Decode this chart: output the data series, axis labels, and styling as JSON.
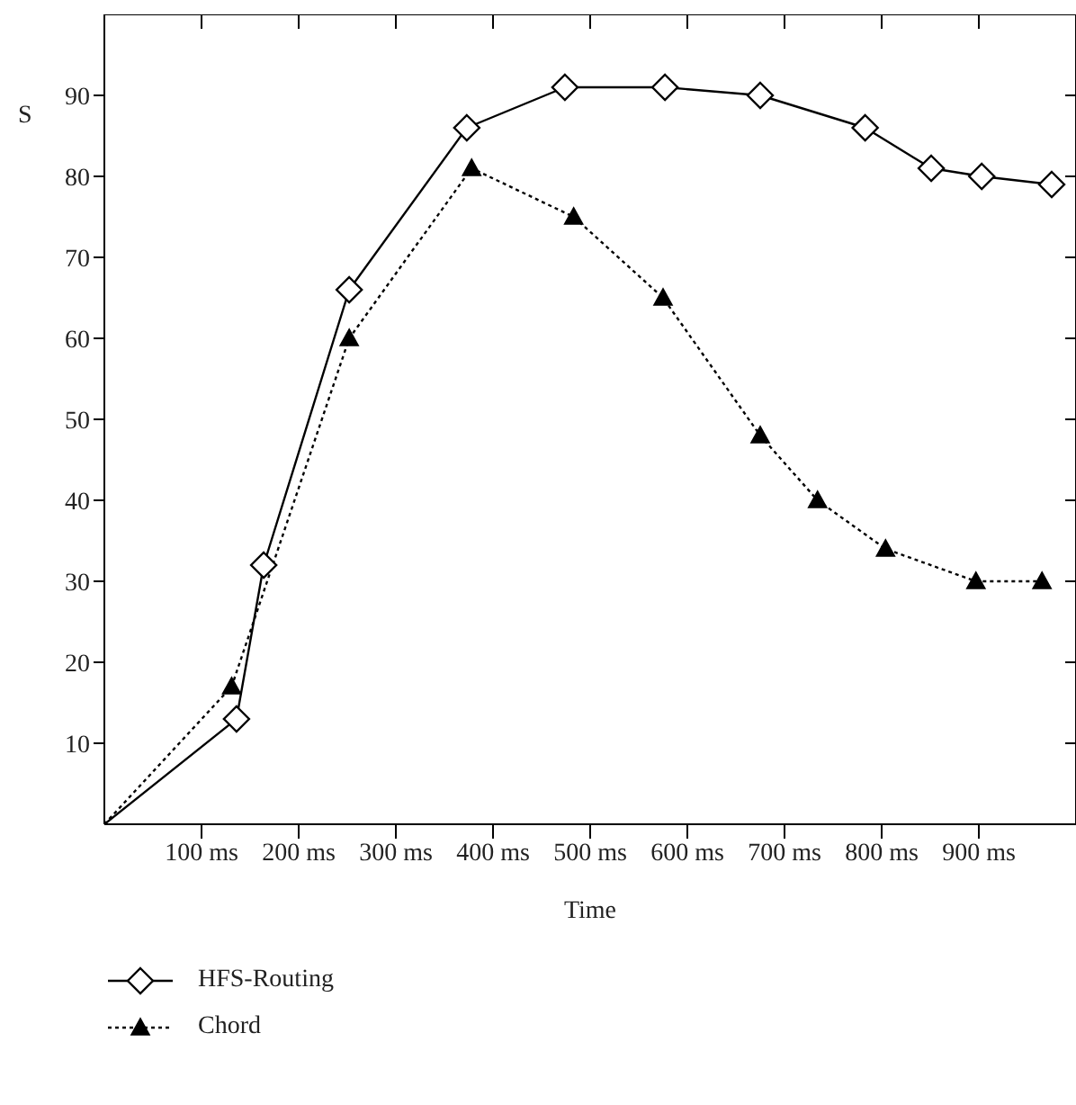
{
  "chart_data": {
    "type": "line",
    "xlabel": "Time",
    "ylabel": "S",
    "xlim": [
      0,
      1000
    ],
    "ylim": [
      0,
      100
    ],
    "xticks": [
      {
        "value": 100,
        "label": "100 ms"
      },
      {
        "value": 200,
        "label": "200 ms"
      },
      {
        "value": 300,
        "label": "300 ms"
      },
      {
        "value": 400,
        "label": "400 ms"
      },
      {
        "value": 500,
        "label": "500 ms"
      },
      {
        "value": 600,
        "label": "600 ms"
      },
      {
        "value": 700,
        "label": "700 ms"
      },
      {
        "value": 800,
        "label": "800 ms"
      },
      {
        "value": 900,
        "label": "900 ms"
      }
    ],
    "yticks": [
      10,
      20,
      30,
      40,
      50,
      60,
      70,
      80,
      90
    ],
    "legend": "bottom left",
    "series": [
      {
        "name": "HFS-Routing",
        "color": "#000000",
        "marker": "diamond",
        "line_style": "solid",
        "x": [
          0,
          136,
          164,
          252,
          373,
          474,
          577,
          675,
          783,
          851,
          903,
          975
        ],
        "values": [
          0,
          13,
          32,
          66,
          86,
          91,
          91,
          90,
          86,
          81,
          80,
          79
        ]
      },
      {
        "name": "Chord",
        "color": "#000000",
        "marker": "triangle",
        "line_style": "dotted",
        "x": [
          0,
          131,
          252,
          378,
          483,
          575,
          675,
          734,
          804,
          897,
          965
        ],
        "values": [
          0,
          17,
          60,
          81,
          75,
          65,
          48,
          40,
          34,
          30,
          30
        ]
      }
    ]
  }
}
